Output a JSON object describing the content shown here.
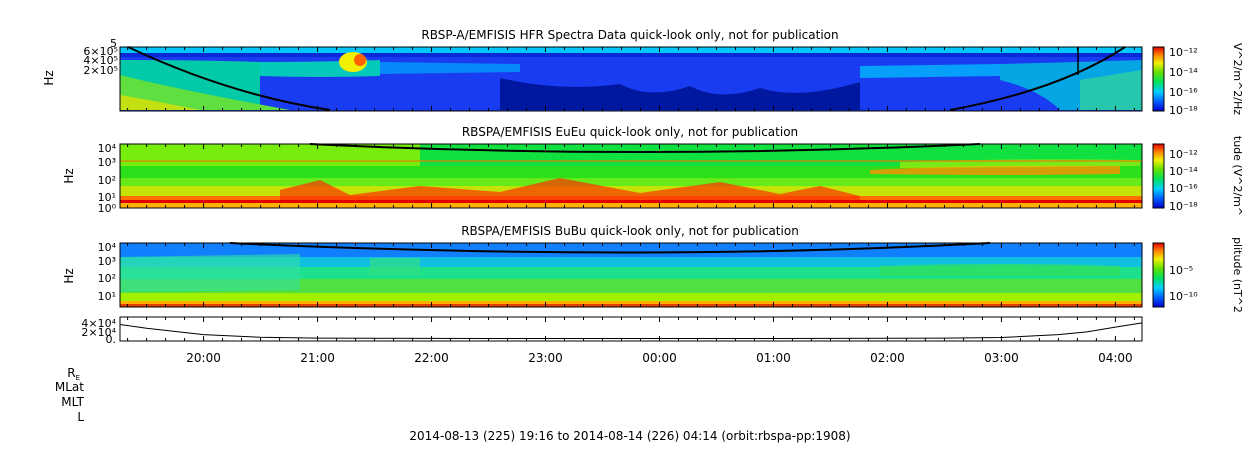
{
  "chart_data": [
    {
      "type": "heatmap",
      "title": "RBSP-A/EMFISIS  HFR Spectra Data quick-look only, not for publication",
      "ylabel": "Hz",
      "ytick_labels": [
        "5",
        "6×10⁵",
        "4×10⁵",
        "2×10⁵"
      ],
      "colorbar_label": "V^2/m^2/Hz",
      "colorbar_ticks": [
        "10⁻¹²",
        "10⁻¹⁴",
        "10⁻¹⁶",
        "10⁻¹⁸"
      ],
      "colorbar_range": [
        1e-18,
        1e-12
      ],
      "colorscale": "rainbow",
      "scale": "log"
    },
    {
      "type": "heatmap",
      "title": "RBSPA/EMFISIS  EuEu quick-look only, not for publication",
      "ylabel": "Hz",
      "ytick_labels": [
        "10⁴",
        "10³",
        "10²",
        "10¹",
        "10⁰"
      ],
      "colorbar_label": "tude (V^2/m^",
      "colorbar_ticks": [
        "10⁻¹²",
        "10⁻¹⁴",
        "10⁻¹⁶",
        "10⁻¹⁸"
      ],
      "colorbar_range": [
        1e-18,
        1e-11
      ],
      "colorscale": "rainbow",
      "scale": "log"
    },
    {
      "type": "heatmap",
      "title": "RBSPA/EMFISIS  BuBu quick-look only, not for publication",
      "ylabel": "Hz",
      "ytick_labels": [
        "10⁴",
        "10³",
        "10²",
        "10¹"
      ],
      "colorbar_label": "plitude (nT^2",
      "colorbar_ticks": [
        "10⁻⁵",
        "10⁻¹⁰"
      ],
      "colorbar_range": [
        1e-12,
        0.01
      ],
      "colorscale": "rainbow",
      "scale": "log"
    },
    {
      "type": "line",
      "ytick_labels": [
        "4×10⁴",
        "2×10⁴",
        "0."
      ],
      "ylim": [
        0,
        45000
      ],
      "x": [
        "19:16",
        "19:30",
        "20:00",
        "20:30",
        "21:00",
        "21:30",
        "22:00",
        "22:30",
        "23:00",
        "23:30",
        "00:00",
        "00:30",
        "01:00",
        "01:30",
        "02:00",
        "02:30",
        "03:00",
        "03:30",
        "03:45",
        "04:00",
        "04:14"
      ],
      "values": [
        31000,
        24000,
        12000,
        7000,
        5500,
        5000,
        4800,
        4700,
        4700,
        4700,
        4700,
        4700,
        4700,
        4800,
        5000,
        5500,
        6500,
        12000,
        17000,
        26000,
        34000
      ]
    }
  ],
  "time_axis": {
    "labels": [
      "20:00",
      "21:00",
      "22:00",
      "23:00",
      "00:00",
      "01:00",
      "02:00",
      "03:00",
      "04:00"
    ],
    "start": "19:16",
    "end": "04:14"
  },
  "ephemeris_labels": [
    "R",
    "MLat",
    "MLT",
    "L"
  ],
  "ephemeris_subscript": "E",
  "footer": "2014-08-13 (225) 19:16 to 2014-08-14 (226) 04:14 (orbit:rbspa-pp:1908)"
}
